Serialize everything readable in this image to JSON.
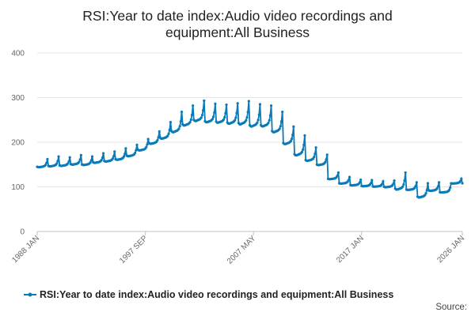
{
  "chart_data": {
    "type": "line",
    "title_lines": [
      "RSI:Year to date index:Audio video recordings and",
      "equipment:All Business"
    ],
    "xlabel": "",
    "ylabel": "",
    "xlim": [
      1988.0,
      2026.0
    ],
    "ylim": [
      0,
      400
    ],
    "y_ticks": [
      0,
      100,
      200,
      300,
      400
    ],
    "x_ticks": [
      {
        "label": "1988 JAN",
        "x": 1988.0
      },
      {
        "label": "1997 SEP",
        "x": 1997.67
      },
      {
        "label": "2007 MAY",
        "x": 2007.33
      },
      {
        "label": "2017 JAN",
        "x": 2017.0
      },
      {
        "label": "2026 JAN",
        "x": 2026.0
      }
    ],
    "grid": "horizontal",
    "legend_position": "bottom",
    "source_label": "Source:",
    "series": [
      {
        "name": "RSI:Year to date index:Audio video recordings and equipment:All Business",
        "color": "#0a7ab8",
        "marker": "circle",
        "annual_baseline": [
          {
            "year": 1988,
            "base": 145,
            "peak": 162
          },
          {
            "year": 1989,
            "base": 147,
            "peak": 168
          },
          {
            "year": 1990,
            "base": 148,
            "peak": 166
          },
          {
            "year": 1991,
            "base": 151,
            "peak": 171
          },
          {
            "year": 1992,
            "base": 150,
            "peak": 168
          },
          {
            "year": 1993,
            "base": 155,
            "peak": 175
          },
          {
            "year": 1994,
            "base": 158,
            "peak": 179
          },
          {
            "year": 1995,
            "base": 162,
            "peak": 186
          },
          {
            "year": 1996,
            "base": 170,
            "peak": 194
          },
          {
            "year": 1997,
            "base": 183,
            "peak": 207
          },
          {
            "year": 1998,
            "base": 198,
            "peak": 224
          },
          {
            "year": 1999,
            "base": 210,
            "peak": 245
          },
          {
            "year": 2000,
            "base": 225,
            "peak": 268
          },
          {
            "year": 2001,
            "base": 240,
            "peak": 282
          },
          {
            "year": 2002,
            "base": 250,
            "peak": 293
          },
          {
            "year": 2003,
            "base": 247,
            "peak": 286
          },
          {
            "year": 2004,
            "base": 246,
            "peak": 284
          },
          {
            "year": 2005,
            "base": 244,
            "peak": 287
          },
          {
            "year": 2006,
            "base": 243,
            "peak": 292
          },
          {
            "year": 2007,
            "base": 238,
            "peak": 285
          },
          {
            "year": 2008,
            "base": 238,
            "peak": 282
          },
          {
            "year": 2009,
            "base": 225,
            "peak": 268
          },
          {
            "year": 2010,
            "base": 198,
            "peak": 235
          },
          {
            "year": 2011,
            "base": 173,
            "peak": 215
          },
          {
            "year": 2012,
            "base": 160,
            "peak": 188
          },
          {
            "year": 2013,
            "base": 150,
            "peak": 172
          },
          {
            "year": 2014,
            "base": 118,
            "peak": 132
          },
          {
            "year": 2015,
            "base": 108,
            "peak": 122
          },
          {
            "year": 2016,
            "base": 104,
            "peak": 116
          },
          {
            "year": 2017,
            "base": 102,
            "peak": 115
          },
          {
            "year": 2018,
            "base": 101,
            "peak": 112
          },
          {
            "year": 2019,
            "base": 100,
            "peak": 114
          },
          {
            "year": 2020,
            "base": 96,
            "peak": 132
          },
          {
            "year": 2021,
            "base": 94,
            "peak": 110
          },
          {
            "year": 2022,
            "base": 78,
            "peak": 108
          },
          {
            "year": 2023,
            "base": 92,
            "peak": 110
          },
          {
            "year": 2024,
            "base": 88,
            "peak": 98
          },
          {
            "year": 2025,
            "base": 108,
            "peak": 118
          },
          {
            "year": 2026,
            "base": 108,
            "peak": 118
          }
        ]
      }
    ]
  }
}
